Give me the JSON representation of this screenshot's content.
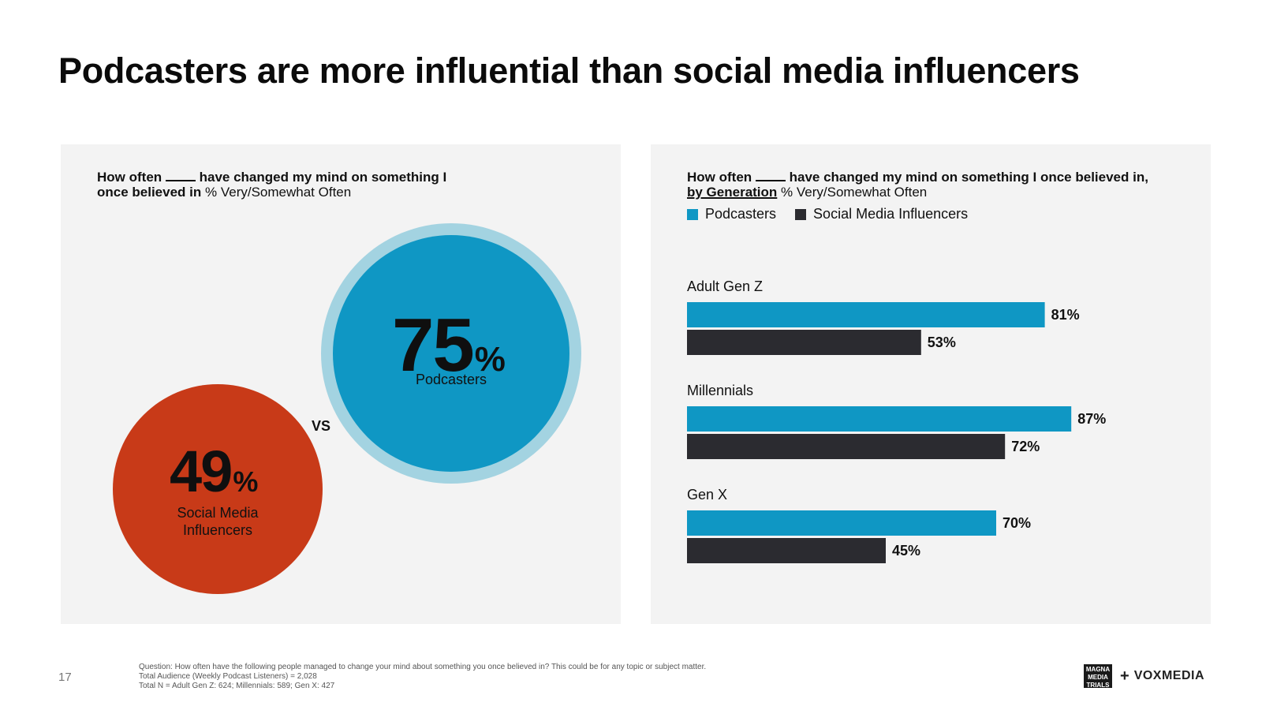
{
  "title": "Podcasters are more influential than social media influencers",
  "left_panel": {
    "question_bold_pre": "How often",
    "question_bold_post": "have changed my mind on something I",
    "question_bold_line2": "once believed in",
    "question_rest": "% Very/Somewhat Often",
    "podcasters": {
      "value": "75",
      "pct": "%",
      "label": "Podcasters"
    },
    "social": {
      "value": "49",
      "pct": "%",
      "label_line1": "Social Media",
      "label_line2": "Influencers"
    },
    "vs": "VS"
  },
  "right_panel": {
    "question_bold_pre": "How often",
    "question_bold_post": "have changed my mind on something I once believed in,",
    "question_bold_line2": "by Generation",
    "question_rest": "% Very/Somewhat Often",
    "legend": [
      {
        "label": "Podcasters",
        "color": "#0f97c4"
      },
      {
        "label": "Social Media Influencers",
        "color": "#2b2b30"
      }
    ]
  },
  "chart_data": {
    "type": "bar",
    "orientation": "horizontal",
    "title": "How often ____ have changed my mind on something I once believed in, by Generation % Very/Somewhat Often",
    "categories": [
      "Adult Gen Z",
      "Millennials",
      "Gen X"
    ],
    "series": [
      {
        "name": "Podcasters",
        "color": "#0f97c4",
        "values": [
          81,
          87,
          70
        ]
      },
      {
        "name": "Social Media Influencers",
        "color": "#2b2b30",
        "values": [
          53,
          72,
          45
        ]
      }
    ],
    "xlim": [
      0,
      100
    ],
    "value_suffix": "%"
  },
  "footer": {
    "page_number": "17",
    "note_line1": "Question: How often have the following people managed to change your mind about something you once believed in? This could be for any topic or subject matter.",
    "note_line2": "Total Audience (Weekly Podcast Listeners) = 2,028",
    "note_line3": "Total N = Adult Gen Z: 624; Millennials: 589; Gen X: 427",
    "logo_magna_top": "MAGNA",
    "logo_magna_bottom": "MEDIA TRIALS",
    "logo_plus": "+",
    "logo_vox": "VOXMEDIA"
  }
}
